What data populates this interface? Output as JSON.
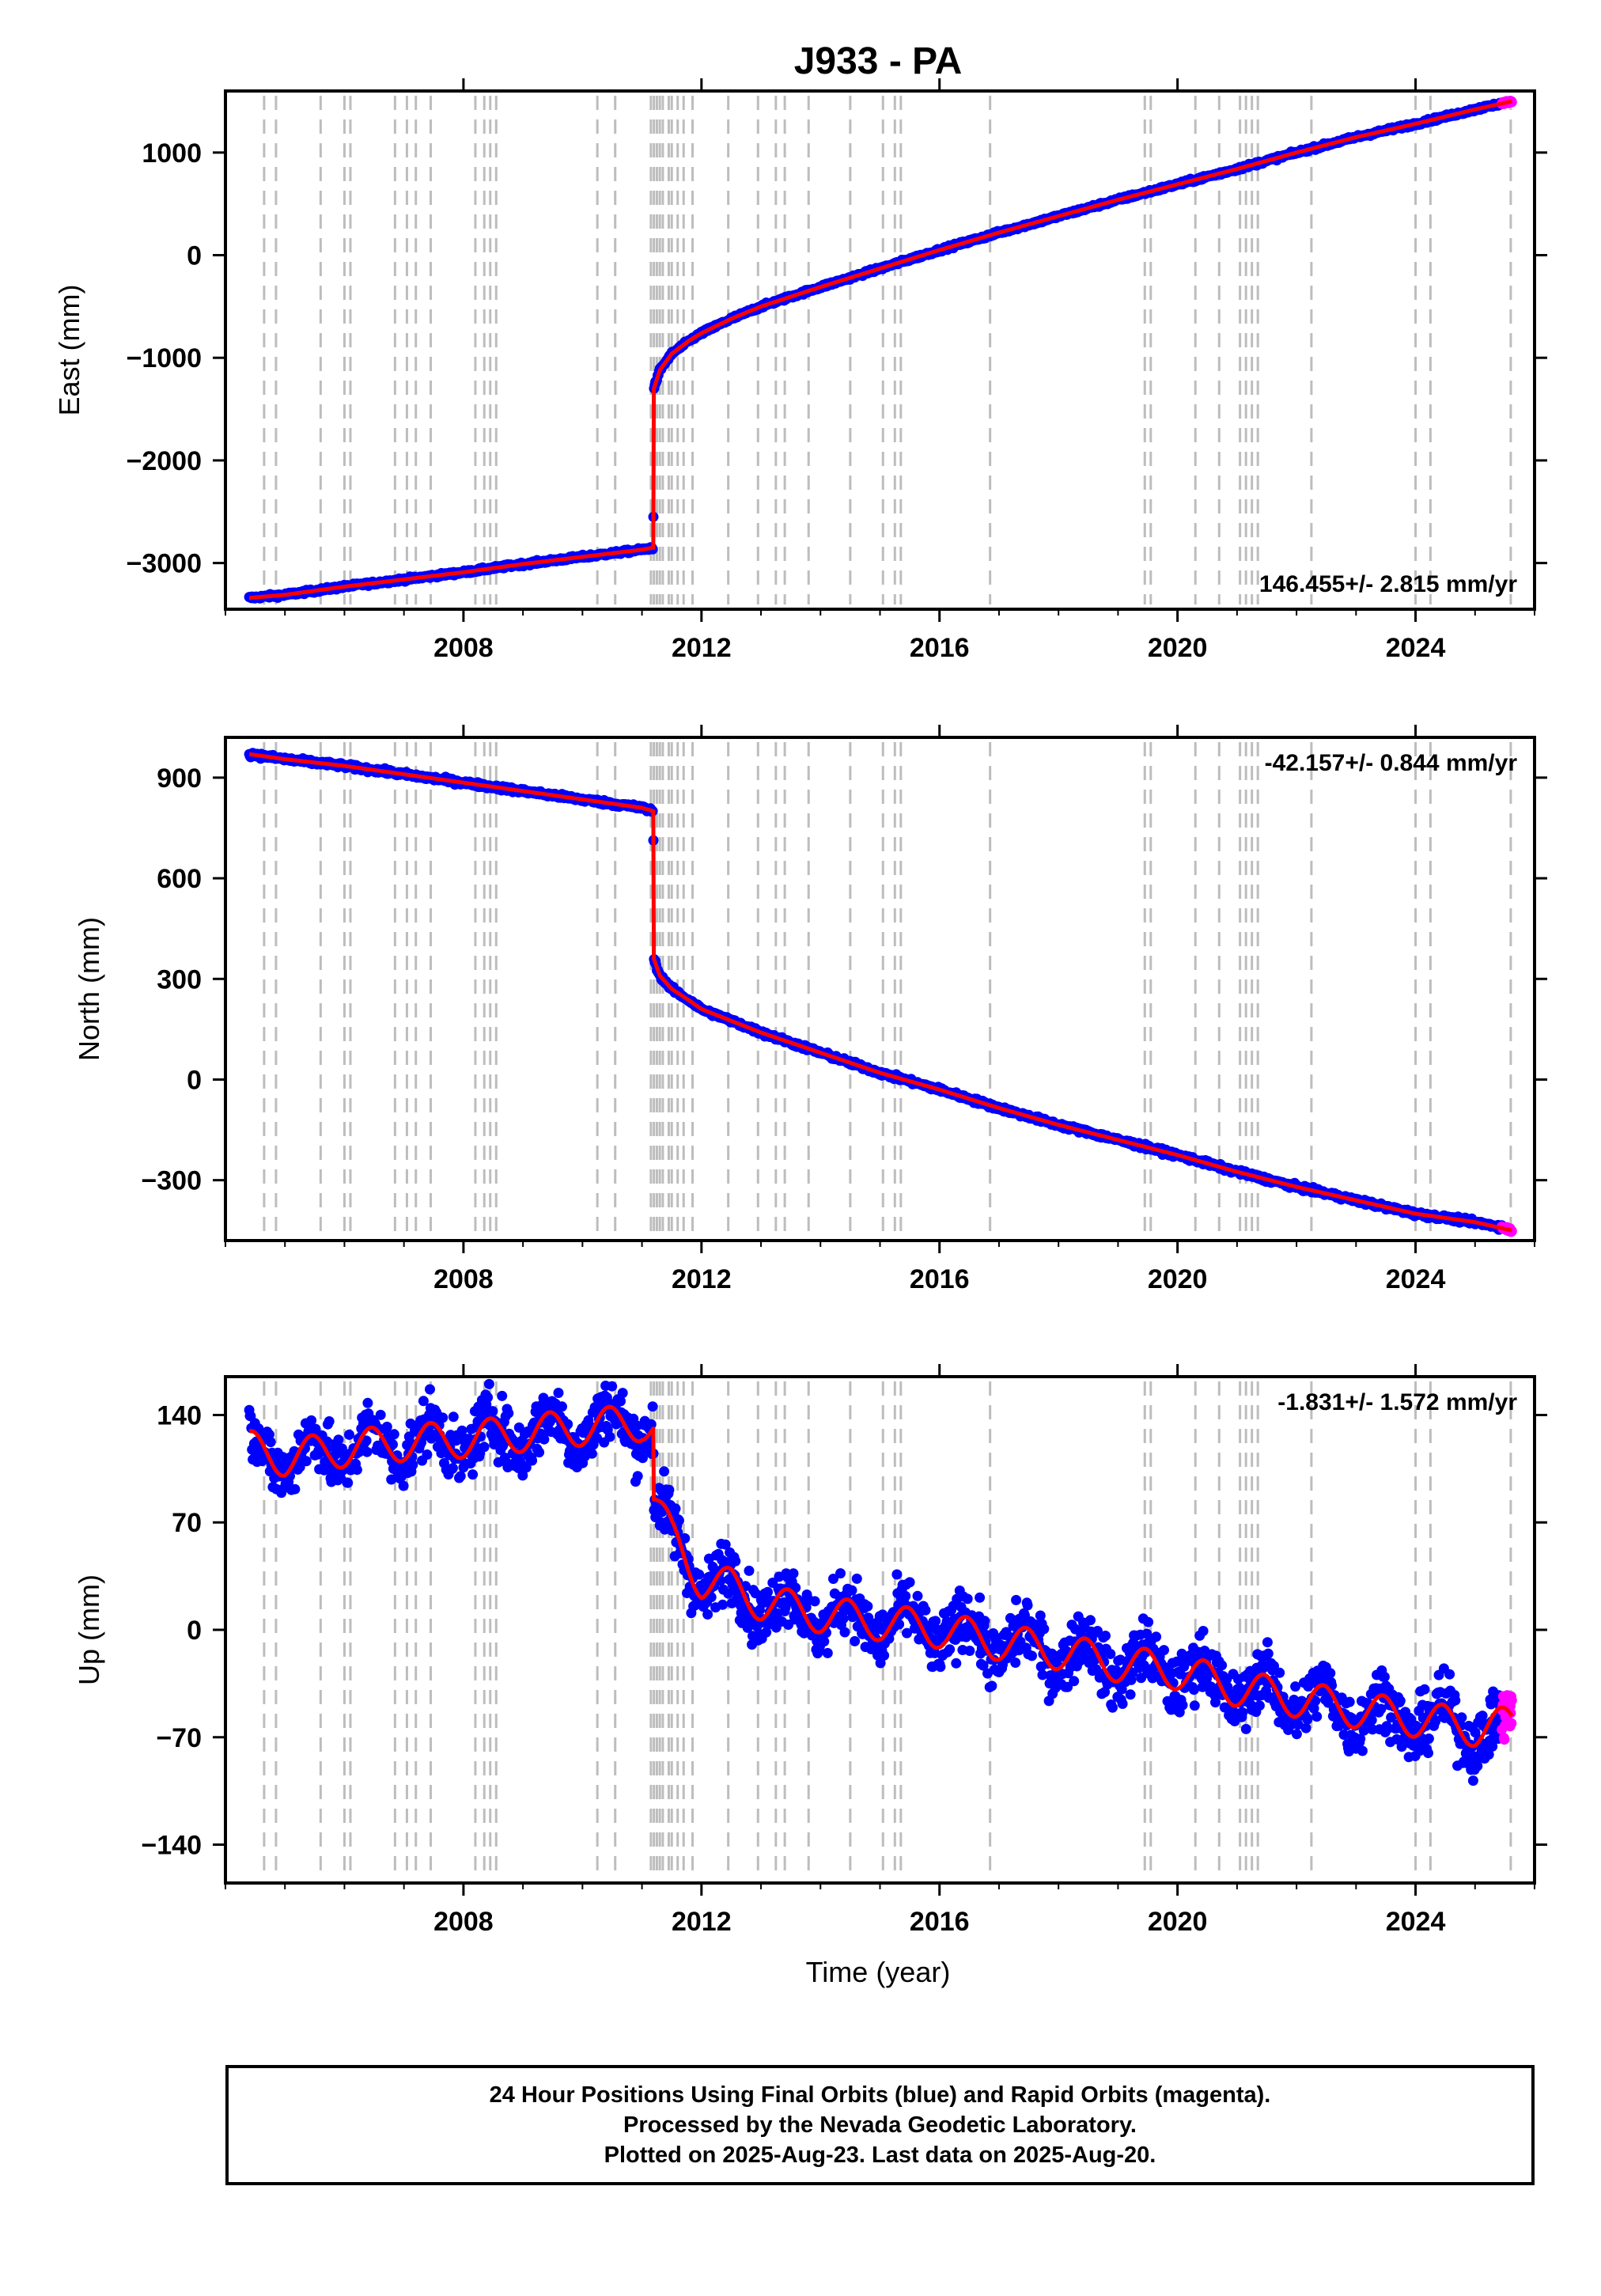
{
  "figure": {
    "title": "J933 - PA",
    "xlabel": "Time (year)",
    "footer_lines": [
      "24 Hour Positions Using Final Orbits (blue) and Rapid Orbits (magenta).",
      "Processed by the Nevada Geodetic Laboratory.",
      "Plotted on 2025-Aug-23. Last data on 2025-Aug-20."
    ]
  },
  "colors": {
    "final_orbits": "#0000ff",
    "rapid_orbits": "#ff00ff",
    "model_fit": "#ff0000",
    "event_lines": "#bdbdbd",
    "frame": "#000000"
  },
  "chart_data": [
    {
      "type": "scatter",
      "component": "East",
      "ylabel": "East (mm)",
      "rate_text": "146.455+/- 2.815 mm/yr",
      "rate_position": "bottom-right",
      "xlim": [
        2004.0,
        2026.0
      ],
      "ylim": [
        -3450,
        1600
      ],
      "xticks": [
        2008,
        2012,
        2016,
        2020,
        2024
      ],
      "yticks": [
        1000,
        0,
        -1000,
        -2000,
        -3000
      ],
      "ytick_labels": [
        "1000",
        "0",
        "−1000",
        "−2000",
        "−3000"
      ],
      "series": [
        {
          "name": "Final Orbits",
          "color": "#0000ff",
          "start": 2004.4,
          "end": 2025.45,
          "noise": 12,
          "x": [
            2004.4,
            2005.0,
            2006.0,
            2007.0,
            2008.0,
            2009.0,
            2010.0,
            2011.0,
            2011.19,
            2011.2,
            2011.3,
            2011.5,
            2011.8,
            2012.0,
            2012.5,
            2013.0,
            2014.0,
            2015.0,
            2016.0,
            2017.0,
            2018.0,
            2019.0,
            2020.0,
            2021.0,
            2022.0,
            2023.0,
            2024.0,
            2025.0,
            2025.45
          ],
          "y": [
            -3340,
            -3310,
            -3230,
            -3160,
            -3090,
            -3010,
            -2940,
            -2870,
            -2850,
            -1300,
            -1120,
            -960,
            -830,
            -760,
            -620,
            -500,
            -310,
            -130,
            50,
            220,
            380,
            540,
            690,
            840,
            1000,
            1150,
            1280,
            1420,
            1480
          ]
        },
        {
          "name": "Rapid Orbits",
          "color": "#ff00ff",
          "start": 2025.45,
          "end": 2025.62,
          "noise": 8,
          "x": [
            2025.45,
            2025.62
          ],
          "y": [
            1480,
            1500
          ]
        },
        {
          "name": "Model Fit",
          "color": "#ff0000",
          "line": true,
          "x": [
            2004.4,
            2005.0,
            2006.0,
            2007.0,
            2008.0,
            2009.0,
            2010.0,
            2011.0,
            2011.19,
            2011.2,
            2011.3,
            2011.5,
            2011.8,
            2012.0,
            2012.5,
            2013.0,
            2014.0,
            2015.0,
            2016.0,
            2017.0,
            2018.0,
            2019.0,
            2020.0,
            2021.0,
            2022.0,
            2023.0,
            2024.0,
            2025.0,
            2025.62
          ],
          "y": [
            -3340,
            -3310,
            -3230,
            -3160,
            -3090,
            -3010,
            -2940,
            -2870,
            -2850,
            -1300,
            -1120,
            -960,
            -830,
            -760,
            -620,
            -500,
            -310,
            -130,
            50,
            220,
            380,
            540,
            690,
            840,
            1000,
            1150,
            1280,
            1420,
            1500
          ]
        }
      ]
    },
    {
      "type": "scatter",
      "component": "North",
      "ylabel": "North (mm)",
      "rate_text": "-42.157+/- 0.844 mm/yr",
      "rate_position": "top-right",
      "xlim": [
        2004.0,
        2026.0
      ],
      "ylim": [
        -480,
        1020
      ],
      "xticks": [
        2008,
        2012,
        2016,
        2020,
        2024
      ],
      "yticks": [
        900,
        600,
        300,
        0,
        -300
      ],
      "ytick_labels": [
        "900",
        "600",
        "300",
        "0",
        "−300"
      ],
      "series": [
        {
          "name": "Final Orbits",
          "color": "#0000ff",
          "start": 2004.4,
          "end": 2025.45,
          "noise": 5,
          "x": [
            2004.4,
            2005.0,
            2006.0,
            2007.0,
            2008.0,
            2009.0,
            2010.0,
            2011.0,
            2011.19,
            2011.2,
            2011.3,
            2011.5,
            2011.8,
            2012.0,
            2013.0,
            2014.0,
            2015.0,
            2016.0,
            2017.0,
            2018.0,
            2019.0,
            2020.0,
            2021.0,
            2022.0,
            2023.0,
            2024.0,
            2025.0,
            2025.45
          ],
          "y": [
            970,
            955,
            935,
            910,
            885,
            860,
            835,
            810,
            800,
            360,
            310,
            270,
            235,
            210,
            140,
            80,
            20,
            -30,
            -85,
            -135,
            -180,
            -225,
            -275,
            -320,
            -360,
            -400,
            -425,
            -440
          ]
        },
        {
          "name": "Rapid Orbits",
          "color": "#ff00ff",
          "start": 2025.45,
          "end": 2025.62,
          "noise": 4,
          "x": [
            2025.45,
            2025.62
          ],
          "y": [
            -440,
            -450
          ]
        },
        {
          "name": "Model Fit",
          "color": "#ff0000",
          "line": true,
          "x": [
            2004.4,
            2005.0,
            2006.0,
            2007.0,
            2008.0,
            2009.0,
            2010.0,
            2011.0,
            2011.19,
            2011.2,
            2011.3,
            2011.5,
            2011.8,
            2012.0,
            2013.0,
            2014.0,
            2015.0,
            2016.0,
            2017.0,
            2018.0,
            2019.0,
            2020.0,
            2021.0,
            2022.0,
            2023.0,
            2024.0,
            2025.0,
            2025.62
          ],
          "y": [
            970,
            955,
            935,
            910,
            885,
            860,
            835,
            810,
            800,
            360,
            310,
            270,
            235,
            210,
            140,
            80,
            20,
            -30,
            -85,
            -135,
            -180,
            -225,
            -275,
            -320,
            -360,
            -400,
            -425,
            -450
          ]
        }
      ]
    },
    {
      "type": "scatter",
      "component": "Up",
      "ylabel": "Up (mm)",
      "rate_text": "-1.831+/- 1.572 mm/yr",
      "rate_position": "top-right",
      "xlim": [
        2004.0,
        2026.0
      ],
      "ylim": [
        -165,
        165
      ],
      "xticks": [
        2008,
        2012,
        2016,
        2020,
        2024
      ],
      "yticks": [
        140,
        70,
        0,
        -70,
        -140
      ],
      "ytick_labels": [
        "140",
        "70",
        "0",
        "−70",
        "−140"
      ],
      "series": [
        {
          "name": "Final Orbits",
          "color": "#0000ff",
          "start": 2004.4,
          "end": 2025.45,
          "noise": 14,
          "x": [
            2004.4,
            2005.0,
            2006.0,
            2007.0,
            2008.0,
            2009.0,
            2010.0,
            2011.0,
            2011.19,
            2011.2,
            2011.5,
            2012.0,
            2012.5,
            2013.0,
            2014.0,
            2015.0,
            2016.0,
            2017.0,
            2018.0,
            2019.0,
            2020.0,
            2021.0,
            2022.0,
            2023.0,
            2024.0,
            2025.0,
            2025.45
          ],
          "y": [
            118,
            112,
            118,
            122,
            124,
            128,
            132,
            135,
            132,
            85,
            60,
            32,
            28,
            18,
            10,
            5,
            0,
            -8,
            -14,
            -22,
            -27,
            -38,
            -45,
            -52,
            -58,
            -64,
            -70
          ]
        },
        {
          "name": "Rapid Orbits",
          "color": "#ff00ff",
          "start": 2025.45,
          "end": 2025.62,
          "noise": 12,
          "x": [
            2025.45,
            2025.62
          ],
          "y": [
            -68,
            -62
          ]
        },
        {
          "name": "Model Fit",
          "color": "#ff0000",
          "line": true,
          "seasonal": 12,
          "x": [
            2004.4,
            2005.0,
            2006.0,
            2007.0,
            2008.0,
            2009.0,
            2010.0,
            2011.0,
            2011.19,
            2011.2,
            2011.5,
            2012.0,
            2012.5,
            2013.0,
            2014.0,
            2015.0,
            2016.0,
            2017.0,
            2018.0,
            2019.0,
            2020.0,
            2021.0,
            2022.0,
            2023.0,
            2024.0,
            2025.0,
            2025.62
          ],
          "y": [
            118,
            112,
            118,
            122,
            124,
            128,
            132,
            135,
            132,
            85,
            60,
            32,
            28,
            18,
            10,
            5,
            0,
            -8,
            -14,
            -22,
            -27,
            -38,
            -45,
            -52,
            -58,
            -64,
            -62
          ]
        }
      ]
    }
  ],
  "event_lines": [
    2004.65,
    2004.85,
    2005.6,
    2006.0,
    2006.1,
    2006.85,
    2007.05,
    2007.2,
    2007.45,
    2008.2,
    2008.35,
    2008.45,
    2008.55,
    2010.25,
    2010.55,
    2011.15,
    2011.2,
    2011.25,
    2011.3,
    2011.35,
    2011.45,
    2011.5,
    2011.6,
    2011.7,
    2011.85,
    2012.45,
    2012.95,
    2013.25,
    2013.4,
    2013.8,
    2014.5,
    2015.05,
    2015.25,
    2015.35,
    2016.85,
    2019.45,
    2019.55,
    2020.3,
    2020.7,
    2021.05,
    2021.15,
    2021.25,
    2021.35,
    2022.25,
    2024.0,
    2024.25,
    2025.6
  ]
}
